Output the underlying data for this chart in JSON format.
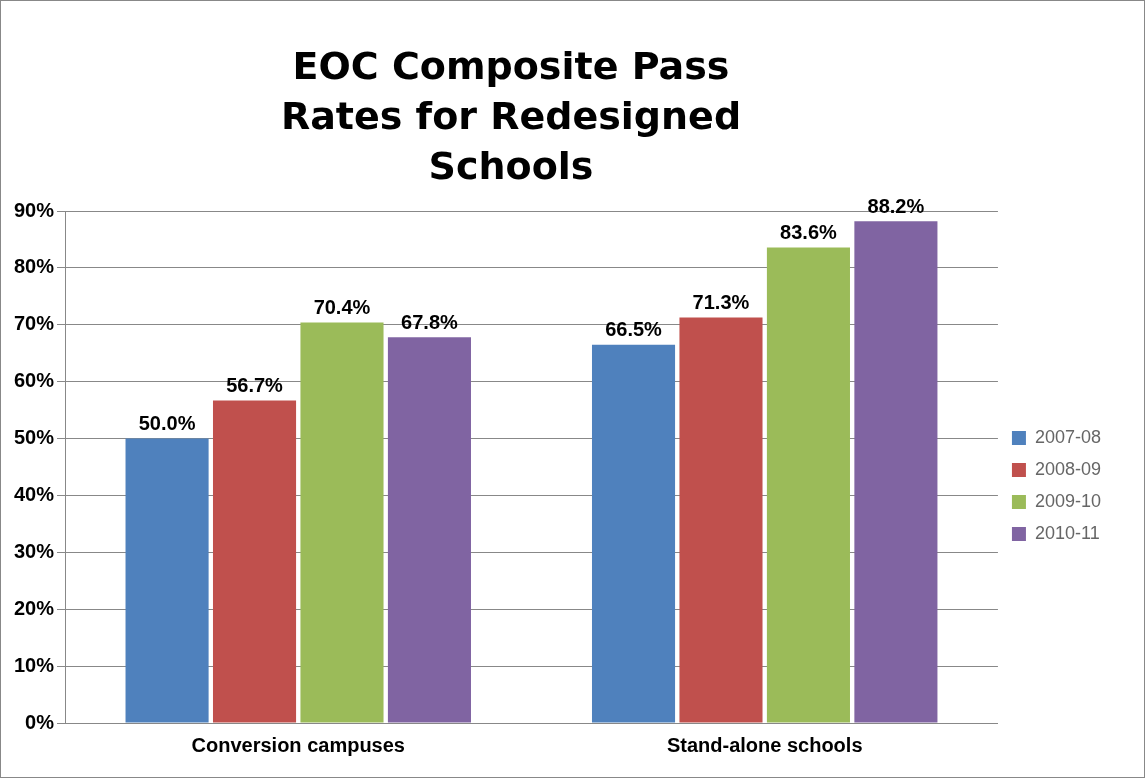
{
  "chart_data": {
    "type": "bar",
    "title": "EOC Composite Pass Rates for Redesigned Schools",
    "categories": [
      "Conversion campuses",
      "Stand-alone schools"
    ],
    "series": [
      {
        "name": "2007-08",
        "color": "#4f81bd",
        "values": [
          50.0,
          66.5
        ],
        "value_labels": [
          "50.0%",
          "66.5%"
        ]
      },
      {
        "name": "2008-09",
        "color": "#c0504d",
        "values": [
          56.7,
          71.3
        ],
        "value_labels": [
          "56.7%",
          "71.3%"
        ]
      },
      {
        "name": "2009-10",
        "color": "#9bbb59",
        "values": [
          70.4,
          83.6
        ],
        "value_labels": [
          "70.4%",
          "83.6%"
        ]
      },
      {
        "name": "2010-11",
        "color": "#8064a2",
        "values": [
          67.8,
          88.2
        ],
        "value_labels": [
          "67.8%",
          "88.2%"
        ]
      }
    ],
    "ylim": [
      0,
      90
    ],
    "yticks": [
      {
        "value": 0,
        "label": "0%"
      },
      {
        "value": 10,
        "label": "10%"
      },
      {
        "value": 20,
        "label": "20%"
      },
      {
        "value": 30,
        "label": "30%"
      },
      {
        "value": 40,
        "label": "40%"
      },
      {
        "value": 50,
        "label": "50%"
      },
      {
        "value": 60,
        "label": "60%"
      },
      {
        "value": 70,
        "label": "70%"
      },
      {
        "value": 80,
        "label": "80%"
      },
      {
        "value": 90,
        "label": "90%"
      }
    ],
    "grid": "y",
    "legend": "right"
  }
}
